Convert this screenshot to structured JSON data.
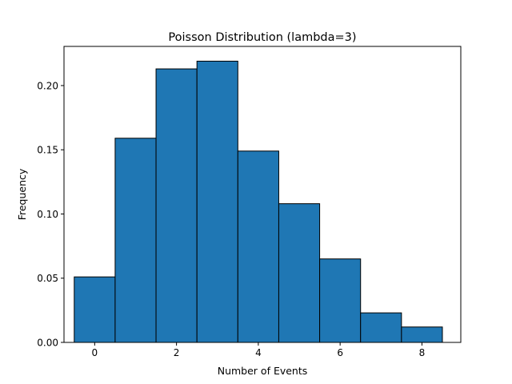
{
  "chart_data": {
    "type": "bar",
    "title": "Poisson Distribution (lambda=3)",
    "xlabel": "Number of Events",
    "ylabel": "Frequency",
    "categories": [
      0,
      1,
      2,
      3,
      4,
      5,
      6,
      7,
      8
    ],
    "values": [
      0.051,
      0.159,
      0.213,
      0.219,
      0.149,
      0.108,
      0.065,
      0.023,
      0.012
    ],
    "bar_width": 1,
    "xlim": [
      -0.75,
      8.95
    ],
    "ylim": [
      0,
      0.2305
    ],
    "xticks": [
      0,
      2,
      4,
      6,
      8
    ],
    "xtick_labels": [
      "0",
      "2",
      "4",
      "6",
      "8"
    ],
    "yticks": [
      0,
      0.05,
      0.1,
      0.15,
      0.2
    ],
    "ytick_labels": [
      "0.00",
      "0.05",
      "0.10",
      "0.15",
      "0.20"
    ],
    "grid": false,
    "legend": "none",
    "bar_color": "#1f77b4",
    "edge_color": "#000000"
  }
}
